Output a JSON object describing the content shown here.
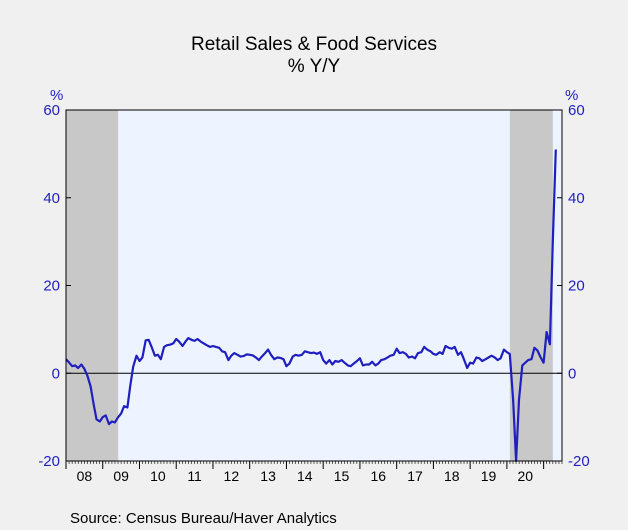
{
  "chart_data": {
    "type": "line",
    "title": "Retail Sales & Food Services",
    "subtitle": "% Y/Y",
    "y_unit_left": "%",
    "y_unit_right": "%",
    "ylim": [
      -20,
      60
    ],
    "y_ticks": [
      -20,
      0,
      20,
      40,
      60
    ],
    "x_tick_labels": [
      "08",
      "09",
      "10",
      "11",
      "12",
      "13",
      "14",
      "15",
      "16",
      "17",
      "18",
      "19",
      "20"
    ],
    "source": "Source:   Census Bureau/Haver Analytics",
    "recession_shading": [
      {
        "start": 2008.0,
        "end": 2009.42
      },
      {
        "start": 2020.08,
        "end": 2021.25
      }
    ],
    "series": [
      {
        "color": "#1f1fbf",
        "points": [
          [
            2008.0,
            3.2
          ],
          [
            2008.08,
            2.5
          ],
          [
            2008.17,
            1.6
          ],
          [
            2008.25,
            1.8
          ],
          [
            2008.33,
            1.2
          ],
          [
            2008.42,
            2.0
          ],
          [
            2008.5,
            1.0
          ],
          [
            2008.58,
            -0.5
          ],
          [
            2008.67,
            -3.0
          ],
          [
            2008.75,
            -7.0
          ],
          [
            2008.83,
            -10.5
          ],
          [
            2008.92,
            -11.0
          ],
          [
            2009.0,
            -10.0
          ],
          [
            2009.08,
            -9.6
          ],
          [
            2009.17,
            -11.6
          ],
          [
            2009.25,
            -11.0
          ],
          [
            2009.33,
            -11.2
          ],
          [
            2009.42,
            -10.0
          ],
          [
            2009.5,
            -9.2
          ],
          [
            2009.58,
            -7.5
          ],
          [
            2009.67,
            -7.8
          ],
          [
            2009.75,
            -2.8
          ],
          [
            2009.83,
            1.5
          ],
          [
            2009.92,
            4.0
          ],
          [
            2010.0,
            2.8
          ],
          [
            2010.08,
            3.6
          ],
          [
            2010.17,
            7.5
          ],
          [
            2010.25,
            7.6
          ],
          [
            2010.33,
            6.0
          ],
          [
            2010.42,
            4.0
          ],
          [
            2010.5,
            4.2
          ],
          [
            2010.58,
            3.2
          ],
          [
            2010.67,
            6.0
          ],
          [
            2010.75,
            6.4
          ],
          [
            2010.83,
            6.5
          ],
          [
            2010.92,
            6.8
          ],
          [
            2011.0,
            7.8
          ],
          [
            2011.08,
            7.2
          ],
          [
            2011.17,
            6.2
          ],
          [
            2011.25,
            7.2
          ],
          [
            2011.33,
            8.0
          ],
          [
            2011.42,
            7.6
          ],
          [
            2011.5,
            7.4
          ],
          [
            2011.58,
            7.8
          ],
          [
            2011.67,
            7.2
          ],
          [
            2011.75,
            6.8
          ],
          [
            2011.83,
            6.4
          ],
          [
            2011.92,
            6.0
          ],
          [
            2012.0,
            6.2
          ],
          [
            2012.08,
            6.0
          ],
          [
            2012.17,
            5.8
          ],
          [
            2012.25,
            5.0
          ],
          [
            2012.33,
            4.8
          ],
          [
            2012.42,
            3.0
          ],
          [
            2012.5,
            4.0
          ],
          [
            2012.58,
            4.6
          ],
          [
            2012.67,
            4.2
          ],
          [
            2012.75,
            3.8
          ],
          [
            2012.83,
            3.9
          ],
          [
            2012.92,
            4.3
          ],
          [
            2013.0,
            4.2
          ],
          [
            2013.08,
            4.1
          ],
          [
            2013.17,
            3.6
          ],
          [
            2013.25,
            3.0
          ],
          [
            2013.33,
            3.8
          ],
          [
            2013.42,
            4.6
          ],
          [
            2013.5,
            5.4
          ],
          [
            2013.58,
            4.2
          ],
          [
            2013.67,
            3.2
          ],
          [
            2013.75,
            3.6
          ],
          [
            2013.83,
            3.5
          ],
          [
            2013.92,
            3.2
          ],
          [
            2014.0,
            1.6
          ],
          [
            2014.08,
            2.2
          ],
          [
            2014.17,
            3.8
          ],
          [
            2014.25,
            4.2
          ],
          [
            2014.33,
            4.0
          ],
          [
            2014.42,
            4.2
          ],
          [
            2014.5,
            5.0
          ],
          [
            2014.58,
            4.8
          ],
          [
            2014.67,
            4.6
          ],
          [
            2014.75,
            4.7
          ],
          [
            2014.83,
            4.4
          ],
          [
            2014.92,
            4.8
          ],
          [
            2015.0,
            3.0
          ],
          [
            2015.08,
            2.2
          ],
          [
            2015.17,
            3.0
          ],
          [
            2015.25,
            2.0
          ],
          [
            2015.33,
            2.8
          ],
          [
            2015.42,
            2.6
          ],
          [
            2015.5,
            3.0
          ],
          [
            2015.58,
            2.4
          ],
          [
            2015.67,
            1.8
          ],
          [
            2015.75,
            1.6
          ],
          [
            2015.83,
            2.2
          ],
          [
            2015.92,
            2.8
          ],
          [
            2016.0,
            3.4
          ],
          [
            2016.08,
            1.8
          ],
          [
            2016.17,
            2.0
          ],
          [
            2016.25,
            2.0
          ],
          [
            2016.33,
            2.6
          ],
          [
            2016.42,
            1.8
          ],
          [
            2016.5,
            2.2
          ],
          [
            2016.58,
            3.0
          ],
          [
            2016.67,
            3.2
          ],
          [
            2016.75,
            3.6
          ],
          [
            2016.83,
            4.0
          ],
          [
            2016.92,
            4.2
          ],
          [
            2017.0,
            5.6
          ],
          [
            2017.08,
            4.6
          ],
          [
            2017.17,
            4.8
          ],
          [
            2017.25,
            4.4
          ],
          [
            2017.33,
            3.6
          ],
          [
            2017.42,
            3.8
          ],
          [
            2017.5,
            3.4
          ],
          [
            2017.58,
            4.6
          ],
          [
            2017.67,
            4.8
          ],
          [
            2017.75,
            6.0
          ],
          [
            2017.83,
            5.4
          ],
          [
            2017.92,
            5.0
          ],
          [
            2018.0,
            4.4
          ],
          [
            2018.08,
            4.2
          ],
          [
            2018.17,
            4.8
          ],
          [
            2018.25,
            4.4
          ],
          [
            2018.33,
            6.2
          ],
          [
            2018.42,
            5.8
          ],
          [
            2018.5,
            5.6
          ],
          [
            2018.58,
            6.0
          ],
          [
            2018.67,
            4.2
          ],
          [
            2018.75,
            4.8
          ],
          [
            2018.83,
            3.2
          ],
          [
            2018.92,
            1.2
          ],
          [
            2019.0,
            2.4
          ],
          [
            2019.08,
            2.2
          ],
          [
            2019.17,
            3.6
          ],
          [
            2019.25,
            3.4
          ],
          [
            2019.33,
            2.8
          ],
          [
            2019.42,
            3.2
          ],
          [
            2019.5,
            3.6
          ],
          [
            2019.58,
            4.0
          ],
          [
            2019.67,
            3.6
          ],
          [
            2019.75,
            3.0
          ],
          [
            2019.83,
            3.4
          ],
          [
            2019.92,
            5.4
          ],
          [
            2020.0,
            4.8
          ],
          [
            2020.08,
            4.4
          ],
          [
            2020.17,
            -6.0
          ],
          [
            2020.25,
            -20.0
          ],
          [
            2020.33,
            -6.0
          ],
          [
            2020.42,
            1.8
          ],
          [
            2020.5,
            2.4
          ],
          [
            2020.58,
            3.0
          ],
          [
            2020.67,
            3.2
          ],
          [
            2020.75,
            5.8
          ],
          [
            2020.83,
            5.2
          ],
          [
            2020.92,
            3.6
          ],
          [
            2021.0,
            2.4
          ],
          [
            2021.08,
            9.4
          ],
          [
            2021.17,
            6.6
          ],
          [
            2021.25,
            30.0
          ],
          [
            2021.33,
            51.0
          ]
        ]
      }
    ]
  }
}
